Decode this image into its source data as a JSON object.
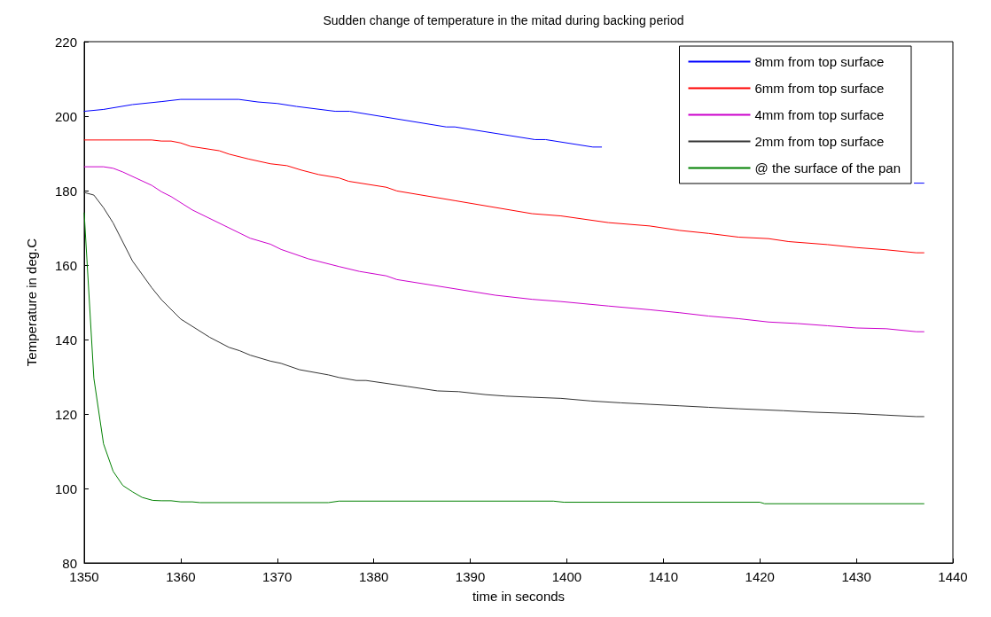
{
  "chart_data": {
    "type": "line",
    "title": "Sudden change of temperature in the mitad during backing period",
    "xlabel": "time in seconds",
    "ylabel": "Temperature in deg.C",
    "xlim": [
      1350,
      1440
    ],
    "xticks": [
      1350,
      1360,
      1370,
      1380,
      1390,
      1400,
      1410,
      1420,
      1430,
      1440
    ],
    "ylim": [
      80,
      220
    ],
    "yticks": [
      80,
      100,
      120,
      140,
      160,
      180,
      200,
      220
    ],
    "grid": false,
    "legend": "top right",
    "marker": "none",
    "line_style": "solid",
    "series": [
      {
        "name": "8mm from top surface",
        "color": "#0000ff",
        "x": [
          1350,
          1352,
          1355,
          1358,
          1360,
          1366,
          1368,
          1370,
          1372,
          1376,
          1377.5,
          1387.5,
          1388.4,
          1396.7,
          1397.8,
          1402.7,
          1403.6,
          1420,
          1436,
          1437
        ],
        "values": [
          201.3,
          201.8,
          203.1,
          203.9,
          204.5,
          204.5,
          203.8,
          203.4,
          202.6,
          201.3,
          201.3,
          197.1,
          197.1,
          193.7,
          193.7,
          191.7,
          191.7,
          null,
          182,
          182
        ]
      },
      {
        "name": "6mm from top surface",
        "color": "#ff0000",
        "x": [
          1350,
          1357,
          1358,
          1359,
          1360,
          1361,
          1364,
          1365,
          1367,
          1369.3,
          1371,
          1372.5,
          1374.3,
          1376.4,
          1377.4,
          1381.3,
          1382.4,
          1388.4,
          1396.4,
          1399.4,
          1404.3,
          1408.6,
          1411.7,
          1414.7,
          1417.8,
          1420.9,
          1423,
          1427,
          1430,
          1433.1,
          1436.2,
          1437
        ],
        "values": [
          193.6,
          193.6,
          193.3,
          193.3,
          192.8,
          191.9,
          190.7,
          189.8,
          188.5,
          187.2,
          186.7,
          185.5,
          184.3,
          183.4,
          182.5,
          180.9,
          179.9,
          177.3,
          173.8,
          173.2,
          171.4,
          170.5,
          169.3,
          168.5,
          167.5,
          167.1,
          166.3,
          165.5,
          164.7,
          164.1,
          163.3,
          163.3
        ]
      },
      {
        "name": "4mm from top surface",
        "color": "#cc00cc",
        "x": [
          1350,
          1352,
          1353,
          1354,
          1357,
          1358,
          1359,
          1361.2,
          1367.2,
          1369.3,
          1370.4,
          1373.2,
          1376.4,
          1378.5,
          1381.3,
          1382.4,
          1392.6,
          1396.4,
          1399.4,
          1404.3,
          1408.6,
          1411.7,
          1414.7,
          1417.8,
          1420.9,
          1423.9,
          1427,
          1430,
          1433.1,
          1436.2,
          1437
        ],
        "values": [
          186.4,
          186.4,
          186,
          185,
          181.4,
          179.7,
          178.4,
          174.8,
          167.2,
          165.6,
          164.2,
          161.7,
          159.6,
          158.3,
          157.1,
          156.1,
          151.9,
          150.8,
          150.2,
          149,
          148,
          147.2,
          146.3,
          145.6,
          144.7,
          144.3,
          143.7,
          143.1,
          142.9,
          142.1,
          142.1
        ]
      },
      {
        "name": "2mm from top surface",
        "color": "#333333",
        "x": [
          1350,
          1351,
          1352,
          1353,
          1355,
          1357,
          1358,
          1360,
          1363,
          1365,
          1366.1,
          1367.2,
          1369.3,
          1370.4,
          1372.3,
          1375.3,
          1376.4,
          1378.2,
          1379.2,
          1383.5,
          1386.6,
          1388.8,
          1391.6,
          1393.7,
          1396.4,
          1399.4,
          1402.5,
          1405.6,
          1408.6,
          1411.7,
          1414.7,
          1417.8,
          1422.4,
          1425.4,
          1430,
          1433.1,
          1436.2,
          1437
        ],
        "values": [
          179.5,
          178.8,
          175.4,
          171.3,
          161.1,
          153.9,
          150.7,
          145.5,
          140.6,
          137.9,
          137,
          135.8,
          134.2,
          133.6,
          131.9,
          130.5,
          129.8,
          129,
          129,
          127.4,
          126.2,
          126,
          125.2,
          124.8,
          124.5,
          124.2,
          123.5,
          123,
          122.6,
          122.2,
          121.8,
          121.4,
          120.9,
          120.5,
          120.1,
          119.7,
          119.3,
          119.3
        ]
      },
      {
        "name": "@ the surface of the pan",
        "color": "#008000",
        "x": [
          1350,
          1351,
          1352,
          1353,
          1354,
          1355,
          1356,
          1357.1,
          1358,
          1359,
          1360,
          1361.2,
          1362,
          1375.3,
          1376.4,
          1398.6,
          1399.7,
          1420,
          1420.5,
          1437
        ],
        "values": [
          174,
          129.6,
          112,
          104.6,
          100.8,
          99.1,
          97.6,
          96.8,
          96.7,
          96.7,
          96.4,
          96.4,
          96.2,
          96.2,
          96.6,
          96.6,
          96.3,
          96.3,
          95.9,
          95.9
        ]
      }
    ]
  }
}
